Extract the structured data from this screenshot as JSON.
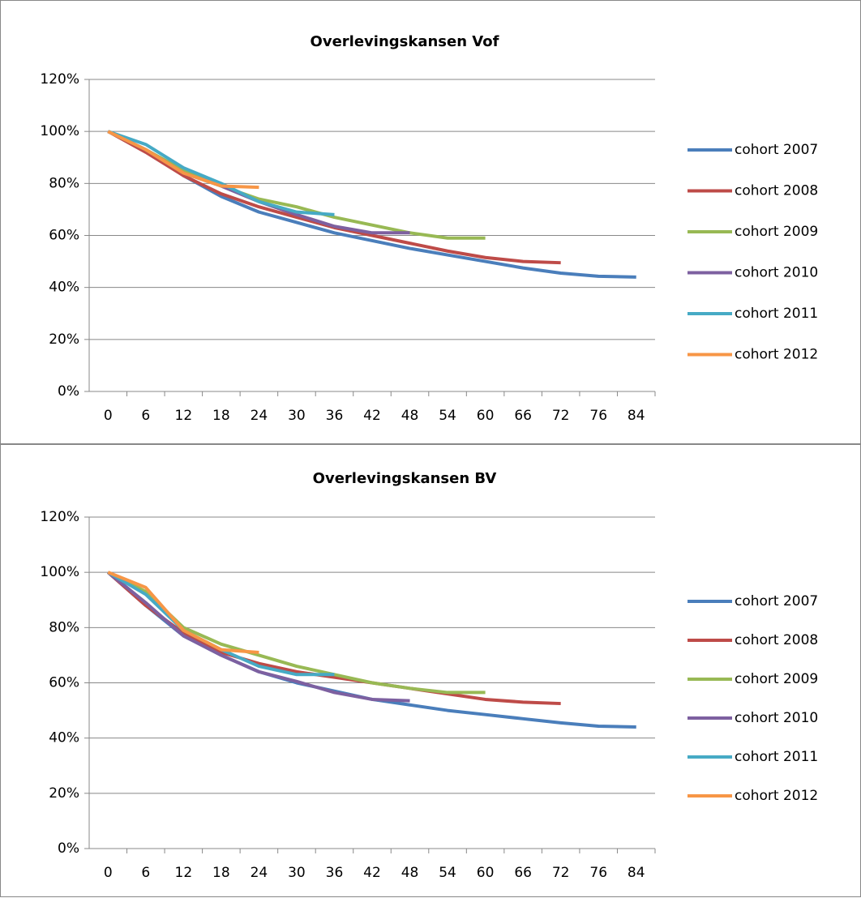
{
  "chart_data": [
    {
      "type": "line",
      "title": "Overlevingskansen Vof",
      "categories": [
        "0",
        "6",
        "12",
        "18",
        "24",
        "30",
        "36",
        "42",
        "48",
        "54",
        "60",
        "66",
        "72",
        "76",
        "84"
      ],
      "ylim": [
        0,
        120
      ],
      "yticks": [
        {
          "value": 0,
          "label": "0%"
        },
        {
          "value": 20,
          "label": "20%"
        },
        {
          "value": 40,
          "label": "40%"
        },
        {
          "value": 60,
          "label": "60%"
        },
        {
          "value": 80,
          "label": "80%"
        },
        {
          "value": 100,
          "label": "100%"
        },
        {
          "value": 120,
          "label": "120%"
        }
      ],
      "grid": true,
      "legend": "right",
      "series": [
        {
          "name": "cohort 2007",
          "color": "#4a7ebb",
          "values": [
            100,
            93,
            83,
            75,
            69,
            65,
            61,
            58,
            55,
            52.5,
            50,
            47.5,
            45.5,
            44.3,
            44
          ]
        },
        {
          "name": "cohort 2008",
          "color": "#be4b48",
          "values": [
            100,
            92,
            83,
            76,
            71,
            67,
            63,
            60,
            57,
            54,
            51.5,
            50,
            49.5,
            null,
            null
          ]
        },
        {
          "name": "cohort 2009",
          "color": "#98b954",
          "values": [
            100,
            93,
            85,
            79,
            74,
            71,
            67,
            64,
            61,
            59,
            59,
            null,
            null,
            null,
            null
          ]
        },
        {
          "name": "cohort 2010",
          "color": "#7d60a0",
          "values": [
            100,
            93,
            84,
            79,
            73,
            68,
            63.5,
            61,
            61,
            null,
            null,
            null,
            null,
            null,
            null
          ]
        },
        {
          "name": "cohort 2011",
          "color": "#46aac5",
          "values": [
            100,
            95,
            86,
            80,
            73,
            69,
            68,
            null,
            null,
            null,
            null,
            null,
            null,
            null,
            null
          ]
        },
        {
          "name": "cohort 2012",
          "color": "#f79646",
          "values": [
            100,
            93,
            84,
            79,
            78.5,
            null,
            null,
            null,
            null,
            null,
            null,
            null,
            null,
            null,
            null
          ]
        }
      ]
    },
    {
      "type": "line",
      "title": "Overlevingskansen BV",
      "categories": [
        "0",
        "6",
        "12",
        "18",
        "24",
        "30",
        "36",
        "42",
        "48",
        "54",
        "60",
        "66",
        "72",
        "76",
        "84"
      ],
      "ylim": [
        0,
        120
      ],
      "yticks": [
        {
          "value": 0,
          "label": "0%"
        },
        {
          "value": 20,
          "label": "20%"
        },
        {
          "value": 40,
          "label": "40%"
        },
        {
          "value": 60,
          "label": "60%"
        },
        {
          "value": 80,
          "label": "80%"
        },
        {
          "value": 100,
          "label": "100%"
        },
        {
          "value": 120,
          "label": "120%"
        }
      ],
      "grid": true,
      "legend": "right",
      "series": [
        {
          "name": "cohort 2007",
          "color": "#4a7ebb",
          "values": [
            100,
            88,
            77,
            70,
            64,
            60,
            57,
            54,
            52,
            50,
            48.5,
            47,
            45.5,
            44.3,
            44
          ]
        },
        {
          "name": "cohort 2008",
          "color": "#be4b48",
          "values": [
            100,
            88,
            78,
            71,
            67,
            64,
            62,
            60,
            58,
            56,
            54,
            53,
            52.5,
            null,
            null
          ]
        },
        {
          "name": "cohort 2009",
          "color": "#98b954",
          "values": [
            100,
            93,
            80,
            74,
            70,
            66,
            63,
            60,
            58,
            56.5,
            56.5,
            null,
            null,
            null,
            null
          ]
        },
        {
          "name": "cohort 2010",
          "color": "#7d60a0",
          "values": [
            100,
            89,
            77,
            70,
            64,
            60.5,
            56.5,
            54,
            53.5,
            null,
            null,
            null,
            null,
            null,
            null
          ]
        },
        {
          "name": "cohort 2011",
          "color": "#46aac5",
          "values": [
            100,
            92,
            79,
            72,
            66,
            63,
            63,
            null,
            null,
            null,
            null,
            null,
            null,
            null,
            null
          ]
        },
        {
          "name": "cohort 2012",
          "color": "#f79646",
          "values": [
            100,
            94.5,
            79,
            72,
            71,
            null,
            null,
            null,
            null,
            null,
            null,
            null,
            null,
            null,
            null
          ]
        }
      ]
    }
  ]
}
